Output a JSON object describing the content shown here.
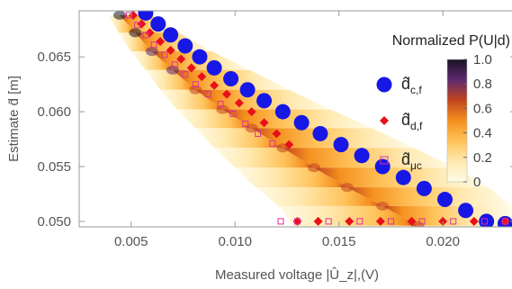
{
  "chart_data": {
    "type": "scatter",
    "title": "",
    "xlabel": "Measured voltage  |Û_z|,(V)",
    "ylabel": "Estimate d̂ [m]",
    "xlim": [
      0.0025,
      0.0235
    ],
    "ylim": [
      0.0495,
      0.0692
    ],
    "x_ticks": [
      0.005,
      0.01,
      0.015,
      0.02
    ],
    "x_tick_labels": [
      "0.005",
      "0.010",
      "0.015",
      "0.020"
    ],
    "y_ticks": [
      0.05,
      0.055,
      0.06,
      0.065
    ],
    "y_tick_labels": [
      "0.050",
      "0.055",
      "0.060",
      "0.065"
    ],
    "grid": false,
    "background": {
      "type": "density",
      "description_label": "Normalized P(U|d)",
      "colorbar_label": "Normalized P(U|d)",
      "colorbar_range": [
        0,
        1
      ],
      "colorbar_ticks": [
        0,
        0.2,
        0.4,
        0.6,
        0.8,
        1.0
      ],
      "colorbar_tick_labels": [
        "0",
        "0.2",
        "0.4",
        "0.6",
        "0.8",
        "1.0"
      ],
      "colors": [
        "#fffbe8",
        "#ffe9b0",
        "#ffc35a",
        "#f5901f",
        "#c2441e",
        "#5e2a6e",
        "#1a1224"
      ],
      "ridge_x": [
        0.00445,
        0.0052,
        0.006,
        0.007,
        0.0081,
        0.0094,
        0.0108,
        0.0123,
        0.0138,
        0.0154,
        0.0171,
        0.0188
      ],
      "ridge_y": [
        0.0688,
        0.0672,
        0.0655,
        0.0638,
        0.062,
        0.0602,
        0.0585,
        0.0567,
        0.0549,
        0.0531,
        0.0514,
        0.0496
      ],
      "outer_left_x": [
        0.0039,
        0.0044,
        0.005,
        0.0057,
        0.0064,
        0.0072,
        0.0081,
        0.009,
        0.01,
        0.011,
        0.0121,
        0.0128
      ],
      "outer_right_x": [
        0.006,
        0.0073,
        0.0089,
        0.0107,
        0.0126,
        0.0146,
        0.0166,
        0.0186,
        0.0206,
        0.0222,
        0.0233,
        0.0233
      ]
    },
    "series": [
      {
        "name": "d̂_c,f",
        "label_main": "d̂",
        "label_sub": "c,f",
        "marker": "circle",
        "color": "#1717e6",
        "x": [
          0.0057,
          0.0063,
          0.0069,
          0.0076,
          0.0083,
          0.009,
          0.0098,
          0.0106,
          0.0114,
          0.0123,
          0.0132,
          0.0141,
          0.0151,
          0.0161,
          0.0171,
          0.0181,
          0.0191,
          0.0201,
          0.0211,
          0.0221,
          0.023
        ],
        "y": [
          0.069,
          0.068,
          0.067,
          0.066,
          0.065,
          0.064,
          0.063,
          0.062,
          0.061,
          0.06,
          0.059,
          0.058,
          0.057,
          0.056,
          0.055,
          0.054,
          0.053,
          0.052,
          0.051,
          0.05,
          0.0498
        ]
      },
      {
        "name": "d̂_d,f",
        "label_main": "d̂",
        "label_sub": "d,f",
        "marker": "diamond",
        "color": "#e8101a",
        "x": [
          0.0051,
          0.0055,
          0.0059,
          0.0064,
          0.0069,
          0.0074,
          0.0079,
          0.0084,
          0.009,
          0.0096,
          0.0102,
          0.0108,
          0.0114,
          0.012,
          0.0126,
          0.013,
          0.014,
          0.0155,
          0.017,
          0.0185,
          0.02,
          0.0215,
          0.023
        ],
        "y": [
          0.0688,
          0.068,
          0.0672,
          0.0664,
          0.0656,
          0.0648,
          0.064,
          0.0632,
          0.0624,
          0.0616,
          0.0608,
          0.06,
          0.059,
          0.058,
          0.057,
          0.05,
          0.05,
          0.05,
          0.05,
          0.05,
          0.05,
          0.05,
          0.05
        ]
      },
      {
        "name": "d̂_μc",
        "label_main": "d̂",
        "label_sub": "μc",
        "marker": "square-open",
        "color": "#e0309a",
        "x": [
          0.0049,
          0.0053,
          0.0057,
          0.0061,
          0.0066,
          0.0071,
          0.0076,
          0.0081,
          0.0087,
          0.0093,
          0.0099,
          0.0105,
          0.0111,
          0.0118,
          0.0122,
          0.013,
          0.0145,
          0.016,
          0.0175,
          0.019,
          0.0205,
          0.022,
          0.023
        ],
        "y": [
          0.0688,
          0.0679,
          0.067,
          0.0661,
          0.0652,
          0.0643,
          0.0634,
          0.0625,
          0.0616,
          0.0607,
          0.0598,
          0.0589,
          0.058,
          0.0571,
          0.05,
          0.05,
          0.05,
          0.05,
          0.05,
          0.05,
          0.05,
          0.05,
          0.05
        ]
      }
    ],
    "legend_placement": "right"
  }
}
